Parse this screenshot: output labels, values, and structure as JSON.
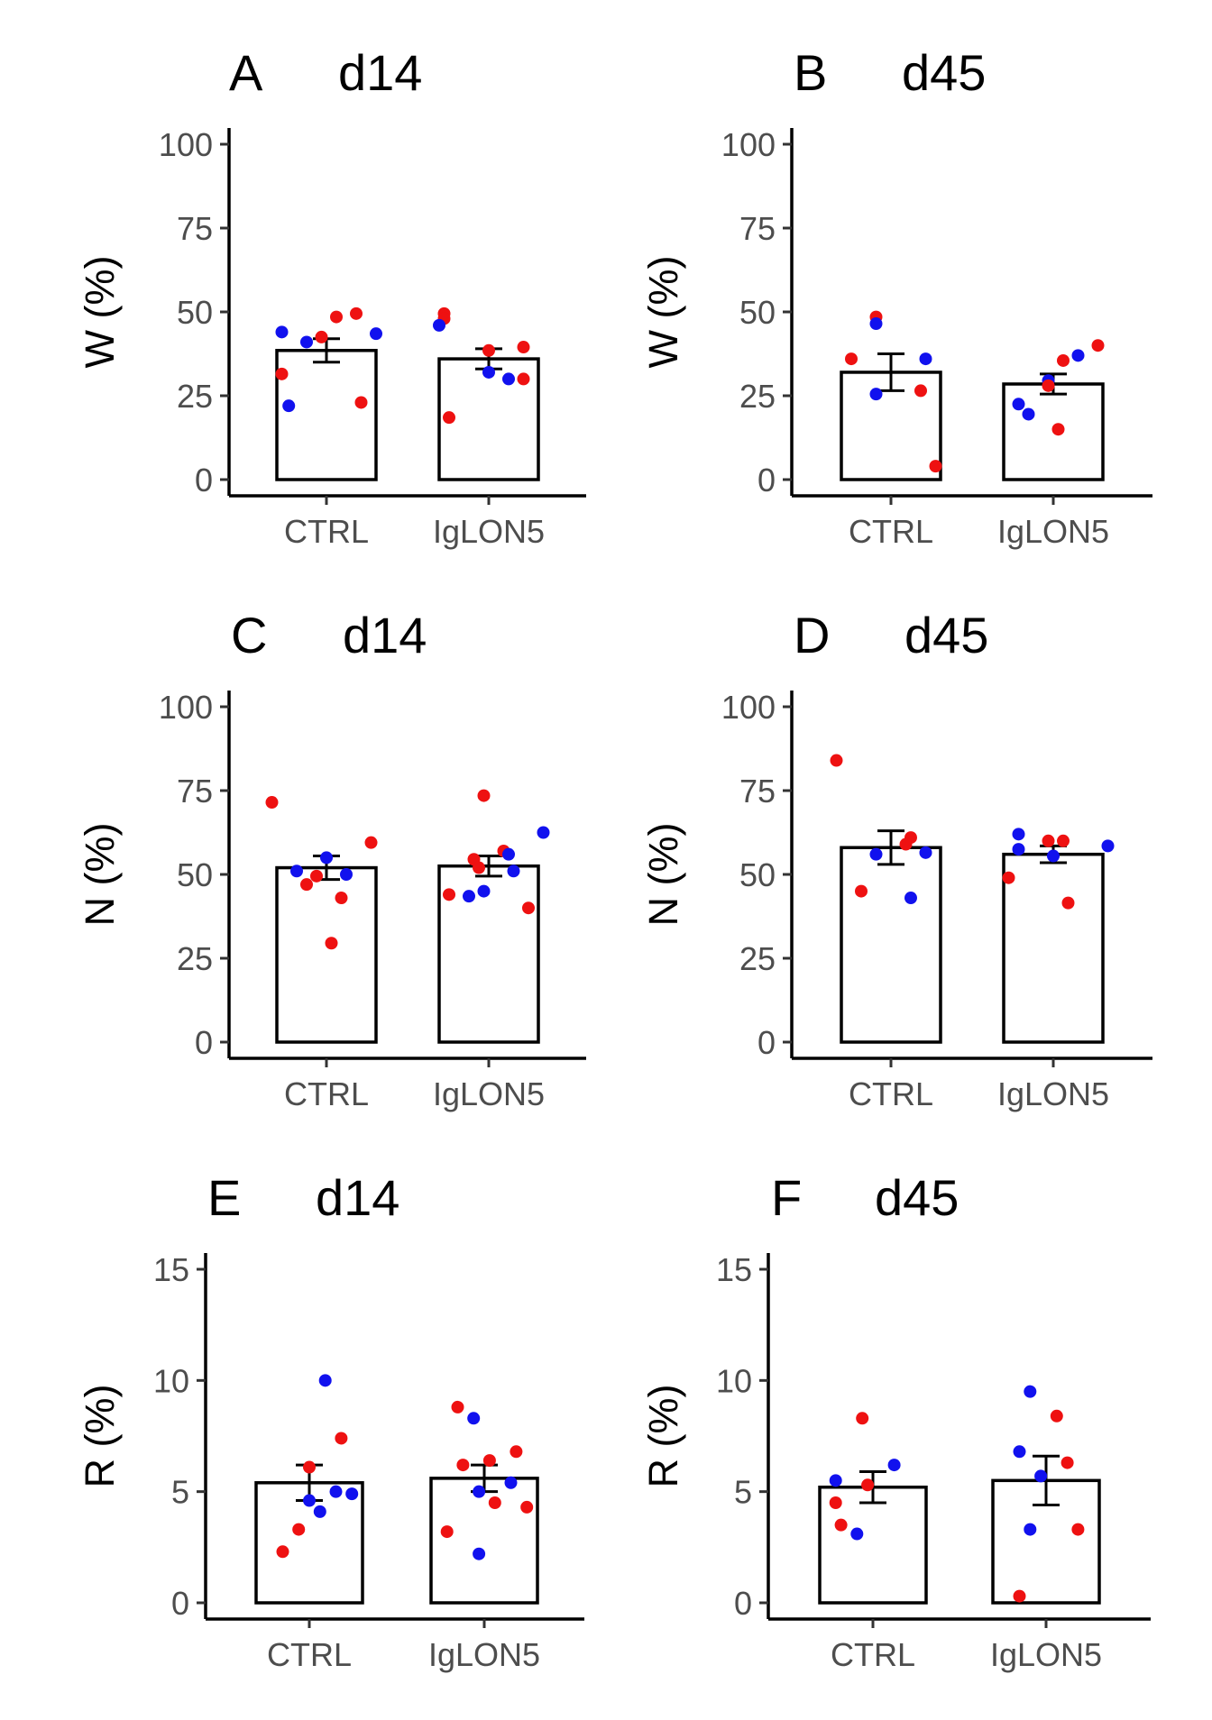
{
  "colors": {
    "red": "#ee1111",
    "blue": "#1111ee"
  },
  "chart_data": [
    {
      "type": "bar",
      "letter": "A",
      "title": "d14",
      "ylabel": "W (%)",
      "categories": [
        "CTRL",
        "IgLON5"
      ],
      "ylim": [
        0,
        100
      ],
      "yticks": [
        "0",
        "25",
        "50",
        "75",
        "100"
      ],
      "means": [
        38.5,
        36
      ],
      "errors": [
        3.5,
        3
      ],
      "points": [
        [
          {
            "y": 44,
            "c": "blue",
            "j": -0.45
          },
          {
            "y": 41,
            "c": "blue",
            "j": -0.2
          },
          {
            "y": 42.5,
            "c": "red",
            "j": -0.05
          },
          {
            "y": 48.5,
            "c": "red",
            "j": 0.1
          },
          {
            "y": 49.5,
            "c": "red",
            "j": 0.3
          },
          {
            "y": 43.5,
            "c": "blue",
            "j": 0.5
          },
          {
            "y": 31.5,
            "c": "red",
            "j": -0.45
          },
          {
            "y": 22,
            "c": "blue",
            "j": -0.38
          },
          {
            "y": 23,
            "c": "red",
            "j": 0.35
          }
        ],
        [
          {
            "y": 49.5,
            "c": "red",
            "j": -0.45
          },
          {
            "y": 48,
            "c": "red",
            "j": -0.45
          },
          {
            "y": 46,
            "c": "blue",
            "j": -0.5
          },
          {
            "y": 38.5,
            "c": "red",
            "j": 0
          },
          {
            "y": 39.5,
            "c": "red",
            "j": 0.35
          },
          {
            "y": 32,
            "c": "blue",
            "j": 0
          },
          {
            "y": 30,
            "c": "blue",
            "j": 0.2
          },
          {
            "y": 30,
            "c": "red",
            "j": 0.35
          },
          {
            "y": 18.5,
            "c": "red",
            "j": -0.4
          }
        ]
      ]
    },
    {
      "type": "bar",
      "letter": "B",
      "title": "d45",
      "ylabel": "W (%)",
      "categories": [
        "CTRL",
        "IgLON5"
      ],
      "ylim": [
        0,
        100
      ],
      "yticks": [
        "0",
        "25",
        "50",
        "75",
        "100"
      ],
      "means": [
        32,
        28.5
      ],
      "errors": [
        5.5,
        3
      ],
      "points": [
        [
          {
            "y": 48.5,
            "c": "red",
            "j": -0.15
          },
          {
            "y": 46.5,
            "c": "blue",
            "j": -0.15
          },
          {
            "y": 36,
            "c": "red",
            "j": -0.4
          },
          {
            "y": 36,
            "c": "blue",
            "j": 0.35
          },
          {
            "y": 25.5,
            "c": "blue",
            "j": -0.15
          },
          {
            "y": 26.5,
            "c": "red",
            "j": 0.3
          },
          {
            "y": 4,
            "c": "red",
            "j": 0.45
          }
        ],
        [
          {
            "y": 40,
            "c": "red",
            "j": 0.45
          },
          {
            "y": 37,
            "c": "blue",
            "j": 0.25
          },
          {
            "y": 35.5,
            "c": "red",
            "j": 0.1
          },
          {
            "y": 29.5,
            "c": "blue",
            "j": -0.05
          },
          {
            "y": 28,
            "c": "red",
            "j": -0.05
          },
          {
            "y": 22.5,
            "c": "blue",
            "j": -0.35
          },
          {
            "y": 19.5,
            "c": "blue",
            "j": -0.25
          },
          {
            "y": 15,
            "c": "red",
            "j": 0.05
          }
        ]
      ]
    },
    {
      "type": "bar",
      "letter": "C",
      "title": "d14",
      "ylabel": "N (%)",
      "categories": [
        "CTRL",
        "IgLON5"
      ],
      "ylim": [
        0,
        100
      ],
      "yticks": [
        "0",
        "25",
        "50",
        "75",
        "100"
      ],
      "means": [
        52,
        52.5
      ],
      "errors": [
        3.5,
        3
      ],
      "points": [
        [
          {
            "y": 71.5,
            "c": "red",
            "j": -0.55
          },
          {
            "y": 59.5,
            "c": "red",
            "j": 0.45
          },
          {
            "y": 55,
            "c": "blue",
            "j": 0
          },
          {
            "y": 51,
            "c": "blue",
            "j": -0.3
          },
          {
            "y": 49.5,
            "c": "red",
            "j": -0.1
          },
          {
            "y": 50,
            "c": "blue",
            "j": 0.2
          },
          {
            "y": 43,
            "c": "red",
            "j": 0.15
          },
          {
            "y": 47,
            "c": "red",
            "j": -0.2
          },
          {
            "y": 29.5,
            "c": "red",
            "j": 0.05
          }
        ],
        [
          {
            "y": 73.5,
            "c": "red",
            "j": -0.05
          },
          {
            "y": 62.5,
            "c": "blue",
            "j": 0.55
          },
          {
            "y": 57,
            "c": "red",
            "j": 0.15
          },
          {
            "y": 56,
            "c": "blue",
            "j": 0.2
          },
          {
            "y": 54.5,
            "c": "red",
            "j": -0.15
          },
          {
            "y": 52,
            "c": "red",
            "j": -0.1
          },
          {
            "y": 51,
            "c": "blue",
            "j": 0.25
          },
          {
            "y": 45,
            "c": "blue",
            "j": -0.05
          },
          {
            "y": 44,
            "c": "red",
            "j": -0.4
          },
          {
            "y": 43.5,
            "c": "blue",
            "j": -0.2
          },
          {
            "y": 40,
            "c": "red",
            "j": 0.4
          }
        ]
      ]
    },
    {
      "type": "bar",
      "letter": "D",
      "title": "d45",
      "ylabel": "N (%)",
      "categories": [
        "CTRL",
        "IgLON5"
      ],
      "ylim": [
        0,
        100
      ],
      "yticks": [
        "0",
        "25",
        "50",
        "75",
        "100"
      ],
      "means": [
        58,
        56
      ],
      "errors": [
        5,
        2.5
      ],
      "points": [
        [
          {
            "y": 84,
            "c": "red",
            "j": -0.55
          },
          {
            "y": 61,
            "c": "red",
            "j": 0.2
          },
          {
            "y": 59,
            "c": "red",
            "j": 0.15
          },
          {
            "y": 56.5,
            "c": "blue",
            "j": 0.35
          },
          {
            "y": 56,
            "c": "blue",
            "j": -0.15
          },
          {
            "y": 45,
            "c": "red",
            "j": -0.3
          },
          {
            "y": 43,
            "c": "blue",
            "j": 0.2
          }
        ],
        [
          {
            "y": 62,
            "c": "blue",
            "j": -0.35
          },
          {
            "y": 60,
            "c": "red",
            "j": -0.05
          },
          {
            "y": 60,
            "c": "red",
            "j": 0.1
          },
          {
            "y": 58.5,
            "c": "blue",
            "j": 0.55
          },
          {
            "y": 57.5,
            "c": "blue",
            "j": -0.35
          },
          {
            "y": 55.5,
            "c": "blue",
            "j": 0
          },
          {
            "y": 49,
            "c": "red",
            "j": -0.45
          },
          {
            "y": 41.5,
            "c": "red",
            "j": 0.15
          }
        ]
      ]
    },
    {
      "type": "bar",
      "letter": "E",
      "title": "d14",
      "ylabel": "R (%)",
      "categories": [
        "CTRL",
        "IgLON5"
      ],
      "ylim": [
        0,
        15
      ],
      "yticks": [
        "0",
        "5",
        "10",
        "15"
      ],
      "means": [
        5.4,
        5.6
      ],
      "errors": [
        0.8,
        0.6
      ],
      "points": [
        [
          {
            "y": 10,
            "c": "blue",
            "j": 0.15
          },
          {
            "y": 7.4,
            "c": "red",
            "j": 0.3
          },
          {
            "y": 6.1,
            "c": "red",
            "j": 0
          },
          {
            "y": 5,
            "c": "blue",
            "j": 0.25
          },
          {
            "y": 4.9,
            "c": "blue",
            "j": 0.4
          },
          {
            "y": 4.6,
            "c": "blue",
            "j": 0
          },
          {
            "y": 4.1,
            "c": "blue",
            "j": 0.1
          },
          {
            "y": 3.3,
            "c": "red",
            "j": -0.1
          },
          {
            "y": 2.3,
            "c": "red",
            "j": -0.25
          }
        ],
        [
          {
            "y": 8.8,
            "c": "red",
            "j": -0.25
          },
          {
            "y": 8.3,
            "c": "blue",
            "j": -0.1
          },
          {
            "y": 6.8,
            "c": "red",
            "j": 0.3
          },
          {
            "y": 6.4,
            "c": "red",
            "j": 0.05
          },
          {
            "y": 6.2,
            "c": "red",
            "j": -0.2
          },
          {
            "y": 5.4,
            "c": "blue",
            "j": 0.25
          },
          {
            "y": 5,
            "c": "blue",
            "j": -0.05
          },
          {
            "y": 4.5,
            "c": "red",
            "j": 0.1
          },
          {
            "y": 4.3,
            "c": "red",
            "j": 0.4
          },
          {
            "y": 3.2,
            "c": "red",
            "j": -0.35
          },
          {
            "y": 2.2,
            "c": "blue",
            "j": -0.05
          }
        ]
      ]
    },
    {
      "type": "bar",
      "letter": "F",
      "title": "d45",
      "ylabel": "R (%)",
      "categories": [
        "CTRL",
        "IgLON5"
      ],
      "ylim": [
        0,
        15
      ],
      "yticks": [
        "0",
        "5",
        "10",
        "15"
      ],
      "means": [
        5.2,
        5.5
      ],
      "errors": [
        0.7,
        1.1
      ],
      "points": [
        [
          {
            "y": 8.3,
            "c": "red",
            "j": -0.1
          },
          {
            "y": 6.2,
            "c": "blue",
            "j": 0.2
          },
          {
            "y": 5.5,
            "c": "blue",
            "j": -0.35
          },
          {
            "y": 5.3,
            "c": "red",
            "j": -0.05
          },
          {
            "y": 4.5,
            "c": "red",
            "j": -0.35
          },
          {
            "y": 3.5,
            "c": "red",
            "j": -0.3
          },
          {
            "y": 3.1,
            "c": "blue",
            "j": -0.15
          }
        ],
        [
          {
            "y": 9.5,
            "c": "blue",
            "j": -0.15
          },
          {
            "y": 8.4,
            "c": "red",
            "j": 0.1
          },
          {
            "y": 6.8,
            "c": "blue",
            "j": -0.25
          },
          {
            "y": 6.3,
            "c": "red",
            "j": 0.2
          },
          {
            "y": 5.7,
            "c": "blue",
            "j": -0.05
          },
          {
            "y": 3.3,
            "c": "blue",
            "j": -0.15
          },
          {
            "y": 3.3,
            "c": "red",
            "j": 0.3
          },
          {
            "y": 0.3,
            "c": "red",
            "j": -0.25
          }
        ]
      ]
    }
  ]
}
